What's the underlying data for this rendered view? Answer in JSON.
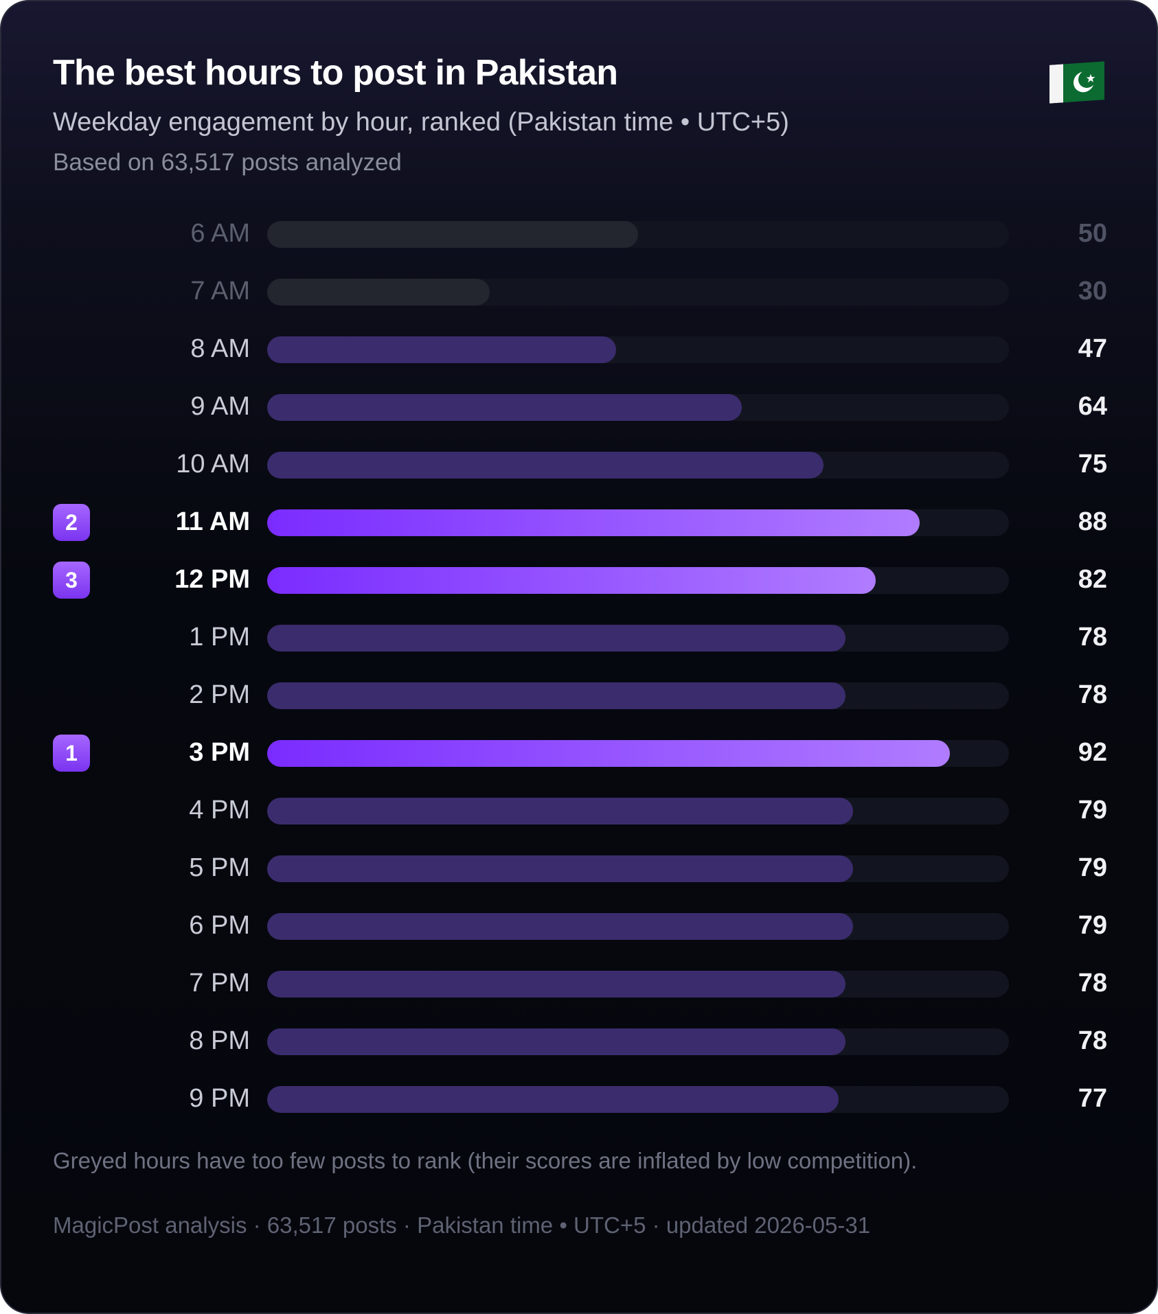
{
  "header": {
    "title": "The best hours to post in Pakistan",
    "subtitle": "Weekday engagement by hour, ranked (Pakistan time • UTC+5)",
    "based_on": "Based on 63,517 posts analyzed",
    "flag_icon": "pakistan-flag-icon"
  },
  "colors": {
    "greyed_bar": "#23252f",
    "normal_bar": "#3b2c6e",
    "top_bar_start": "#7a2cff",
    "top_bar_end": "#b07cff",
    "rank_badge": "#8c49ff",
    "track": "#12151f"
  },
  "chart_data": {
    "type": "bar",
    "orientation": "horizontal",
    "categories": [
      "6 AM",
      "7 AM",
      "8 AM",
      "9 AM",
      "10 AM",
      "11 AM",
      "12 PM",
      "1 PM",
      "2 PM",
      "3 PM",
      "4 PM",
      "5 PM",
      "6 PM",
      "7 PM",
      "8 PM",
      "9 PM"
    ],
    "values": [
      50,
      30,
      47,
      64,
      75,
      88,
      82,
      78,
      78,
      92,
      79,
      79,
      79,
      78,
      78,
      77
    ],
    "value_labels": [
      "50",
      "30",
      "47",
      "64",
      "75",
      "88",
      "82",
      "78",
      "78",
      "92",
      "79",
      "79",
      "79",
      "78",
      "78",
      "77"
    ],
    "greyed": [
      true,
      true,
      false,
      false,
      false,
      false,
      false,
      false,
      false,
      false,
      false,
      false,
      false,
      false,
      false,
      false
    ],
    "ranks": [
      null,
      null,
      null,
      null,
      null,
      "2",
      "3",
      null,
      null,
      "1",
      null,
      null,
      null,
      null,
      null,
      null
    ],
    "xlim": [
      0,
      100
    ],
    "grid": false,
    "title": "",
    "xlabel": "",
    "ylabel": ""
  },
  "note": "Greyed hours have too few posts to rank (their scores are inflated by low competition).",
  "footer": "MagicPost analysis · 63,517 posts · Pakistan time • UTC+5 · updated 2026-05-31"
}
